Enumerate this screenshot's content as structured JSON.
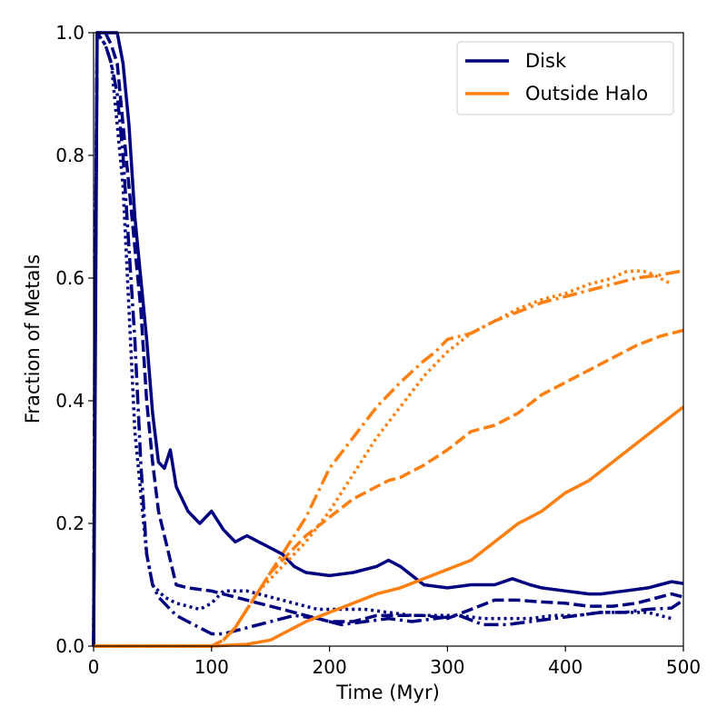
{
  "chart_data": {
    "type": "line",
    "title": "",
    "xlabel": "Time (Myr)",
    "ylabel": "Fraction of Metals",
    "xlim": [
      0,
      500
    ],
    "ylim": [
      0,
      1.0
    ],
    "xticks": [
      "0",
      "100",
      "200",
      "300",
      "400",
      "500"
    ],
    "yticks": [
      "0.0",
      "0.2",
      "0.4",
      "0.6",
      "0.8",
      "1.0"
    ],
    "grid": false,
    "legend_position": "top-right",
    "legend": [
      {
        "label": "Disk",
        "color": "#000080"
      },
      {
        "label": "Outside Halo",
        "color": "#ff7f0e"
      }
    ],
    "series": [
      {
        "name": "Disk",
        "group": "Disk",
        "color": "#000080",
        "style": "solid",
        "x": [
          0,
          1,
          3,
          10,
          20,
          25,
          30,
          35,
          40,
          45,
          50,
          55,
          60,
          65,
          70,
          80,
          90,
          100,
          110,
          120,
          130,
          140,
          150,
          160,
          170,
          180,
          200,
          220,
          240,
          250,
          260,
          280,
          300,
          320,
          340,
          355,
          370,
          380,
          400,
          420,
          430,
          450,
          470,
          480,
          490,
          500
        ],
        "y": [
          0.0,
          0.3,
          1.0,
          1.0,
          1.0,
          0.95,
          0.85,
          0.7,
          0.6,
          0.5,
          0.38,
          0.3,
          0.29,
          0.32,
          0.26,
          0.22,
          0.2,
          0.22,
          0.19,
          0.17,
          0.18,
          0.17,
          0.16,
          0.15,
          0.13,
          0.12,
          0.115,
          0.12,
          0.13,
          0.14,
          0.13,
          0.1,
          0.095,
          0.1,
          0.1,
          0.11,
          0.1,
          0.095,
          0.09,
          0.085,
          0.085,
          0.09,
          0.095,
          0.1,
          0.105,
          0.102
        ]
      },
      {
        "name": "Disk",
        "group": "Disk",
        "color": "#000080",
        "style": "dashed",
        "x": [
          0,
          1,
          3,
          10,
          15,
          20,
          25,
          30,
          35,
          40,
          45,
          50,
          55,
          60,
          70,
          80,
          100,
          120,
          140,
          160,
          180,
          200,
          220,
          240,
          260,
          280,
          300,
          320,
          340,
          360,
          380,
          400,
          420,
          440,
          460,
          480,
          490,
          500
        ],
        "y": [
          0.0,
          0.4,
          1.0,
          1.0,
          0.98,
          0.95,
          0.85,
          0.75,
          0.65,
          0.55,
          0.4,
          0.3,
          0.22,
          0.18,
          0.1,
          0.095,
          0.09,
          0.08,
          0.07,
          0.06,
          0.05,
          0.04,
          0.04,
          0.05,
          0.05,
          0.05,
          0.045,
          0.06,
          0.075,
          0.075,
          0.072,
          0.07,
          0.065,
          0.065,
          0.07,
          0.08,
          0.085,
          0.08
        ]
      },
      {
        "name": "Disk",
        "group": "Disk",
        "color": "#000080",
        "style": "dashdot",
        "x": [
          0,
          1,
          3,
          10,
          15,
          20,
          25,
          30,
          35,
          40,
          45,
          50,
          55,
          60,
          70,
          80,
          90,
          100,
          110,
          130,
          150,
          170,
          190,
          210,
          230,
          250,
          270,
          290,
          310,
          330,
          350,
          370,
          390,
          410,
          430,
          450,
          470,
          490,
          500
        ],
        "y": [
          0.0,
          0.5,
          1.0,
          0.98,
          0.95,
          0.9,
          0.8,
          0.65,
          0.5,
          0.3,
          0.15,
          0.1,
          0.08,
          0.07,
          0.05,
          0.04,
          0.03,
          0.02,
          0.02,
          0.03,
          0.04,
          0.05,
          0.045,
          0.035,
          0.04,
          0.045,
          0.04,
          0.045,
          0.05,
          0.035,
          0.035,
          0.04,
          0.045,
          0.05,
          0.055,
          0.055,
          0.06,
          0.062,
          0.075
        ]
      },
      {
        "name": "Disk",
        "group": "Disk",
        "color": "#000080",
        "style": "dotted",
        "x": [
          0,
          1,
          3,
          10,
          15,
          20,
          25,
          30,
          35,
          40,
          45,
          50,
          60,
          70,
          80,
          90,
          100,
          110,
          130,
          150,
          170,
          190,
          210,
          230,
          250,
          270,
          290,
          310,
          330,
          350,
          370,
          390,
          410,
          430,
          450,
          470,
          480,
          490
        ],
        "y": [
          0.0,
          0.5,
          1.0,
          0.98,
          0.95,
          0.85,
          0.75,
          0.55,
          0.35,
          0.25,
          0.15,
          0.1,
          0.08,
          0.07,
          0.065,
          0.06,
          0.07,
          0.09,
          0.09,
          0.08,
          0.07,
          0.06,
          0.06,
          0.06,
          0.055,
          0.05,
          0.05,
          0.05,
          0.045,
          0.045,
          0.045,
          0.05,
          0.05,
          0.055,
          0.055,
          0.055,
          0.05,
          0.045
        ]
      },
      {
        "name": "Outside Halo",
        "group": "Outside Halo",
        "color": "#ff7f0e",
        "style": "solid",
        "x": [
          0,
          100,
          130,
          150,
          160,
          170,
          180,
          200,
          220,
          240,
          260,
          280,
          300,
          320,
          330,
          340,
          350,
          360,
          370,
          380,
          400,
          420,
          440,
          460,
          480,
          500
        ],
        "y": [
          0.0,
          0.0,
          0.003,
          0.01,
          0.02,
          0.03,
          0.04,
          0.055,
          0.07,
          0.085,
          0.095,
          0.11,
          0.125,
          0.14,
          0.155,
          0.17,
          0.185,
          0.2,
          0.21,
          0.22,
          0.25,
          0.27,
          0.3,
          0.33,
          0.36,
          0.39
        ]
      },
      {
        "name": "Outside Halo",
        "group": "Outside Halo",
        "color": "#ff7f0e",
        "style": "dashed",
        "x": [
          0,
          100,
          110,
          120,
          130,
          140,
          150,
          160,
          170,
          180,
          200,
          220,
          240,
          250,
          260,
          270,
          280,
          300,
          320,
          340,
          360,
          380,
          400,
          420,
          440,
          460,
          480,
          500
        ],
        "y": [
          0.0,
          0.0,
          0.01,
          0.03,
          0.06,
          0.09,
          0.12,
          0.14,
          0.16,
          0.18,
          0.21,
          0.24,
          0.26,
          0.27,
          0.275,
          0.285,
          0.295,
          0.32,
          0.35,
          0.36,
          0.38,
          0.41,
          0.43,
          0.45,
          0.47,
          0.49,
          0.505,
          0.515
        ]
      },
      {
        "name": "Outside Halo",
        "group": "Outside Halo",
        "color": "#ff7f0e",
        "style": "dashdot",
        "x": [
          0,
          100,
          110,
          120,
          130,
          140,
          150,
          160,
          170,
          180,
          190,
          200,
          220,
          240,
          260,
          280,
          290,
          300,
          320,
          340,
          360,
          380,
          400,
          420,
          440,
          460,
          480,
          500
        ],
        "y": [
          0.0,
          0.0,
          0.01,
          0.03,
          0.06,
          0.09,
          0.12,
          0.15,
          0.18,
          0.21,
          0.25,
          0.29,
          0.34,
          0.39,
          0.43,
          0.465,
          0.48,
          0.5,
          0.51,
          0.53,
          0.545,
          0.56,
          0.57,
          0.58,
          0.59,
          0.6,
          0.605,
          0.612
        ]
      },
      {
        "name": "Outside Halo",
        "group": "Outside Halo",
        "color": "#ff7f0e",
        "style": "dotted",
        "x": [
          0,
          100,
          110,
          120,
          130,
          140,
          150,
          160,
          170,
          180,
          200,
          220,
          240,
          260,
          280,
          300,
          320,
          340,
          360,
          380,
          400,
          420,
          440,
          450,
          460,
          470,
          480,
          490
        ],
        "y": [
          0.0,
          0.0,
          0.01,
          0.03,
          0.06,
          0.09,
          0.11,
          0.13,
          0.15,
          0.17,
          0.22,
          0.28,
          0.34,
          0.39,
          0.44,
          0.48,
          0.51,
          0.53,
          0.55,
          0.565,
          0.575,
          0.59,
          0.6,
          0.61,
          0.612,
          0.61,
          0.6,
          0.59
        ]
      }
    ]
  }
}
